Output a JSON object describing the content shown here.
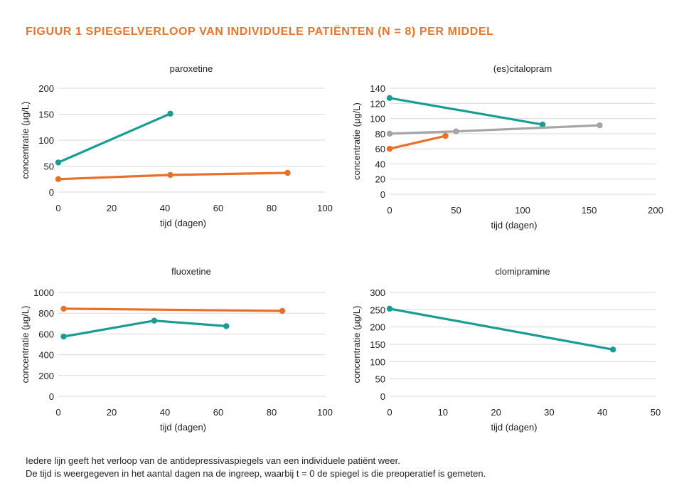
{
  "figure_title": "FIGUUR 1  SPIEGELVERLOOP VAN INDIVIDUELE PATIËNTEN (N = 8) PER MIDDEL",
  "captions": [
    "Iedere lijn geeft het verloop van de antidepressivaspiegels van een individuele patiënt weer.",
    "De tijd is weergegeven in het aantal dagen na de ingreep, waarbij t = 0 de spiegel is die preoperatief is gemeten."
  ],
  "colors": {
    "teal": "#1a9c94",
    "orange": "#e8702a",
    "gray": "#a5a5a5",
    "grid": "#d9d9d9",
    "title": "#e8752a"
  },
  "chart_data": [
    {
      "type": "line",
      "title": "paroxetine",
      "xlabel": "tijd (dagen)",
      "ylabel": "concentratie (µg/L)",
      "xlim": [
        0,
        100
      ],
      "ylim": [
        0,
        200
      ],
      "xticks": [
        0,
        20,
        40,
        60,
        80,
        100
      ],
      "yticks": [
        0,
        50,
        100,
        150,
        200
      ],
      "grid": true,
      "series": [
        {
          "color": "#1a9c94",
          "x": [
            0,
            42
          ],
          "y": [
            57,
            151
          ]
        },
        {
          "color": "#e8702a",
          "x": [
            0,
            42,
            86
          ],
          "y": [
            25,
            33,
            37
          ]
        }
      ]
    },
    {
      "type": "line",
      "title": "(es)citalopram",
      "xlabel": "tijd (dagen)",
      "ylabel": "concentratie (µg/L)",
      "xlim": [
        0,
        200
      ],
      "ylim": [
        0,
        140
      ],
      "xticks": [
        0,
        50,
        100,
        150,
        200
      ],
      "yticks": [
        0,
        20,
        40,
        60,
        80,
        100,
        120,
        140
      ],
      "grid": true,
      "series": [
        {
          "color": "#1a9c94",
          "x": [
            0,
            115
          ],
          "y": [
            127,
            92
          ]
        },
        {
          "color": "#a5a5a5",
          "x": [
            0,
            50,
            158
          ],
          "y": [
            80,
            83,
            91
          ]
        },
        {
          "color": "#e8702a",
          "x": [
            0,
            42
          ],
          "y": [
            60,
            77
          ]
        }
      ]
    },
    {
      "type": "line",
      "title": "fluoxetine",
      "xlabel": "tijd (dagen)",
      "ylabel": "concentratie (µg/L)",
      "xlim": [
        0,
        100
      ],
      "ylim": [
        0,
        1000
      ],
      "xticks": [
        0,
        20,
        40,
        60,
        80,
        100
      ],
      "yticks": [
        0,
        200,
        400,
        600,
        800,
        1000
      ],
      "grid": true,
      "series": [
        {
          "color": "#e8702a",
          "x": [
            2,
            84
          ],
          "y": [
            843,
            822
          ]
        },
        {
          "color": "#1a9c94",
          "x": [
            2,
            36,
            63
          ],
          "y": [
            575,
            728,
            675
          ]
        }
      ]
    },
    {
      "type": "line",
      "title": "clomipramine",
      "xlabel": "tijd (dagen)",
      "ylabel": "concentratie (µg/L)",
      "xlim": [
        0,
        50
      ],
      "ylim": [
        0,
        300
      ],
      "xticks": [
        0,
        10,
        20,
        30,
        40,
        50
      ],
      "yticks": [
        0,
        50,
        100,
        150,
        200,
        250,
        300
      ],
      "grid": true,
      "series": [
        {
          "color": "#1a9c94",
          "x": [
            0,
            42
          ],
          "y": [
            253,
            135
          ]
        }
      ]
    }
  ]
}
